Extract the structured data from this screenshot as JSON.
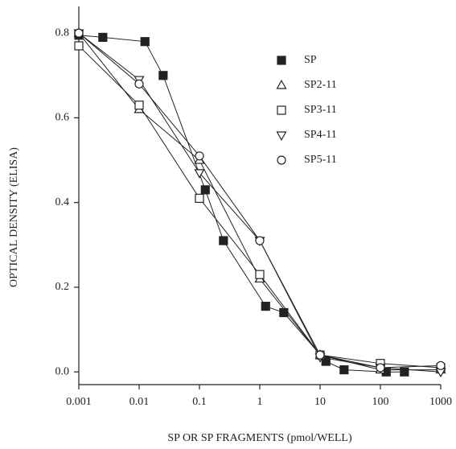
{
  "chart_data": {
    "type": "line",
    "x_label": "SP OR SP FRAGMENTS (pmol/WELL)",
    "y_label": "OPTICAL DENSITY (ELISA)",
    "log_x": true,
    "xlim": [
      0.001,
      1000
    ],
    "xticks": [
      0.001,
      0.01,
      0.1,
      1,
      10,
      100,
      1000
    ],
    "ylim": [
      -0.03,
      0.863
    ],
    "yticks": [
      {
        "value": 0,
        "label": "0.0"
      },
      0.2,
      0.4,
      0.6,
      0.8
    ],
    "series": [
      {
        "name": "SP",
        "color": "#222222",
        "marker": "square-filled",
        "x": [
          0.001,
          0.0025,
          0.0125,
          0.025,
          0.125,
          0.25,
          1.25,
          2.5,
          12.5,
          25,
          125,
          250
        ],
        "values": [
          0.795,
          0.79,
          0.78,
          0.7,
          0.43,
          0.31,
          0.155,
          0.14,
          0.025,
          0.005,
          0.0,
          0.0
        ]
      },
      {
        "name": "SP2-11",
        "color": "#222222",
        "marker": "triangle-up",
        "x": [
          0.001,
          0.01,
          0.1,
          1,
          10,
          100,
          1000
        ],
        "values": [
          0.8,
          0.62,
          0.5,
          0.22,
          0.04,
          0.005,
          0.005
        ]
      },
      {
        "name": "SP3-11",
        "color": "#222222",
        "marker": "square",
        "x": [
          0.001,
          0.01,
          0.1,
          1,
          10,
          100,
          1000
        ],
        "values": [
          0.77,
          0.63,
          0.41,
          0.23,
          0.04,
          0.02,
          0.01
        ]
      },
      {
        "name": "SP4-11",
        "color": "#222222",
        "marker": "triangle-down",
        "x": [
          0.001,
          0.01,
          0.1,
          1,
          10,
          100,
          1000
        ],
        "values": [
          0.8,
          0.69,
          0.47,
          0.31,
          0.035,
          0.01,
          0.0
        ]
      },
      {
        "name": "SP5-11",
        "color": "#222222",
        "marker": "circle",
        "x": [
          0.001,
          0.01,
          0.1,
          1,
          10,
          100,
          1000
        ],
        "values": [
          0.8,
          0.68,
          0.51,
          0.31,
          0.04,
          0.01,
          0.015
        ]
      }
    ]
  }
}
